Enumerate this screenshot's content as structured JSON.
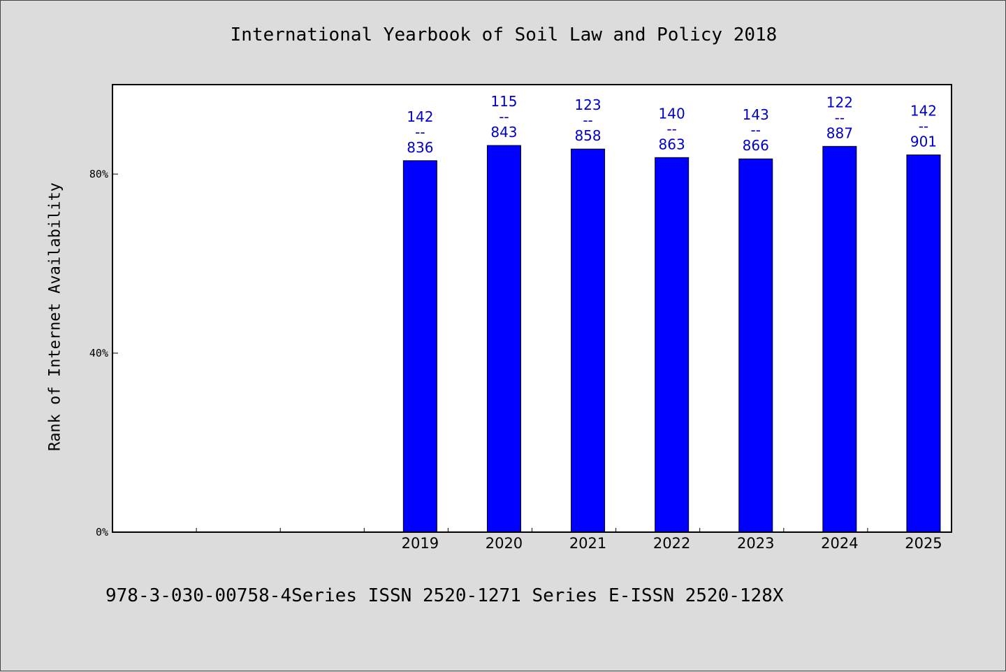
{
  "chart_data": {
    "type": "bar",
    "title": "International Yearbook of Soil Law and Policy 2018",
    "xlabel": "",
    "ylabel": "Rank of Internet Availability",
    "footer": "978-3-030-00758-4Series ISSN 2520-1271 Series E-ISSN 2520-128X",
    "categories": [
      "",
      "",
      "",
      "2019",
      "2020",
      "2021",
      "2022",
      "2023",
      "2024",
      "2025"
    ],
    "values": [
      null,
      null,
      null,
      0.83,
      0.864,
      0.856,
      0.837,
      0.834,
      0.862,
      0.843
    ],
    "bar_labels": [
      null,
      null,
      null,
      [
        "142",
        "--",
        "836"
      ],
      [
        "115",
        "--",
        "843"
      ],
      [
        "123",
        "--",
        "858"
      ],
      [
        "140",
        "--",
        "863"
      ],
      [
        "143",
        "--",
        "866"
      ],
      [
        "122",
        "--",
        "887"
      ],
      [
        "142",
        "--",
        "901"
      ]
    ],
    "yticks": [
      0,
      0.4,
      0.8
    ],
    "ytick_labels": [
      "0%",
      "40%",
      "80%"
    ],
    "ylim": [
      0,
      1.0
    ],
    "grid": false,
    "legend": "none",
    "bar_color": "#0000ff",
    "label_color": "#0000cc"
  }
}
